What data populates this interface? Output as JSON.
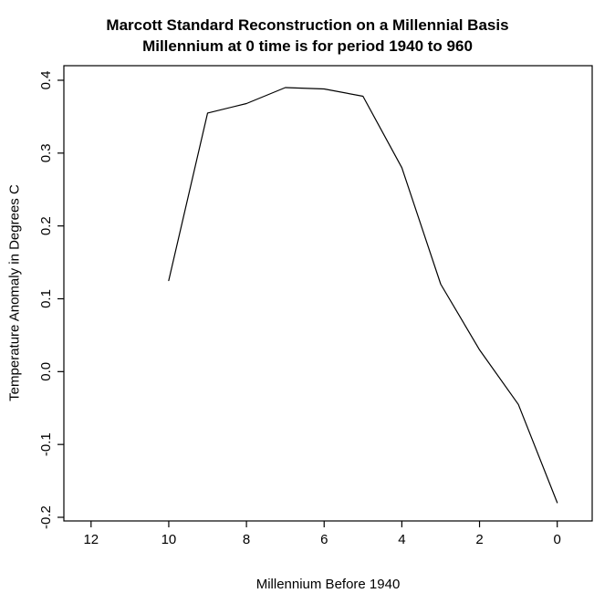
{
  "chart_data": {
    "type": "line",
    "title": "Marcott Standard Reconstruction on a Millennial Basis",
    "subtitle": "Millennium at 0 time is for period 1940 to 960",
    "xlabel": "Millennium Before 1940",
    "ylabel": "Temperature Anomaly in Degrees C",
    "x": [
      10,
      9,
      8,
      7,
      6,
      5,
      4,
      3,
      2,
      1,
      0
    ],
    "y": [
      0.125,
      0.355,
      0.368,
      0.39,
      0.388,
      0.378,
      0.28,
      0.12,
      0.03,
      -0.045,
      -0.18
    ],
    "xlim": [
      12.7,
      -0.9
    ],
    "ylim": [
      -0.205,
      0.42
    ],
    "x_axis_reversed": true,
    "x_tick_values": [
      12,
      10,
      8,
      6,
      4,
      2,
      0
    ],
    "x_tick_labels": [
      "12",
      "10",
      "8",
      "6",
      "4",
      "2",
      "0"
    ],
    "y_tick_values": [
      -0.2,
      -0.1,
      0.0,
      0.1,
      0.2,
      0.3,
      0.4
    ],
    "y_tick_labels": [
      "-0.2",
      "-0.1",
      "0.0",
      "0.1",
      "0.2",
      "0.3",
      "0.4"
    ],
    "grid": false,
    "legend": null,
    "line_color": "#000000",
    "background_color": "#ffffff",
    "text_color": "#000000"
  }
}
